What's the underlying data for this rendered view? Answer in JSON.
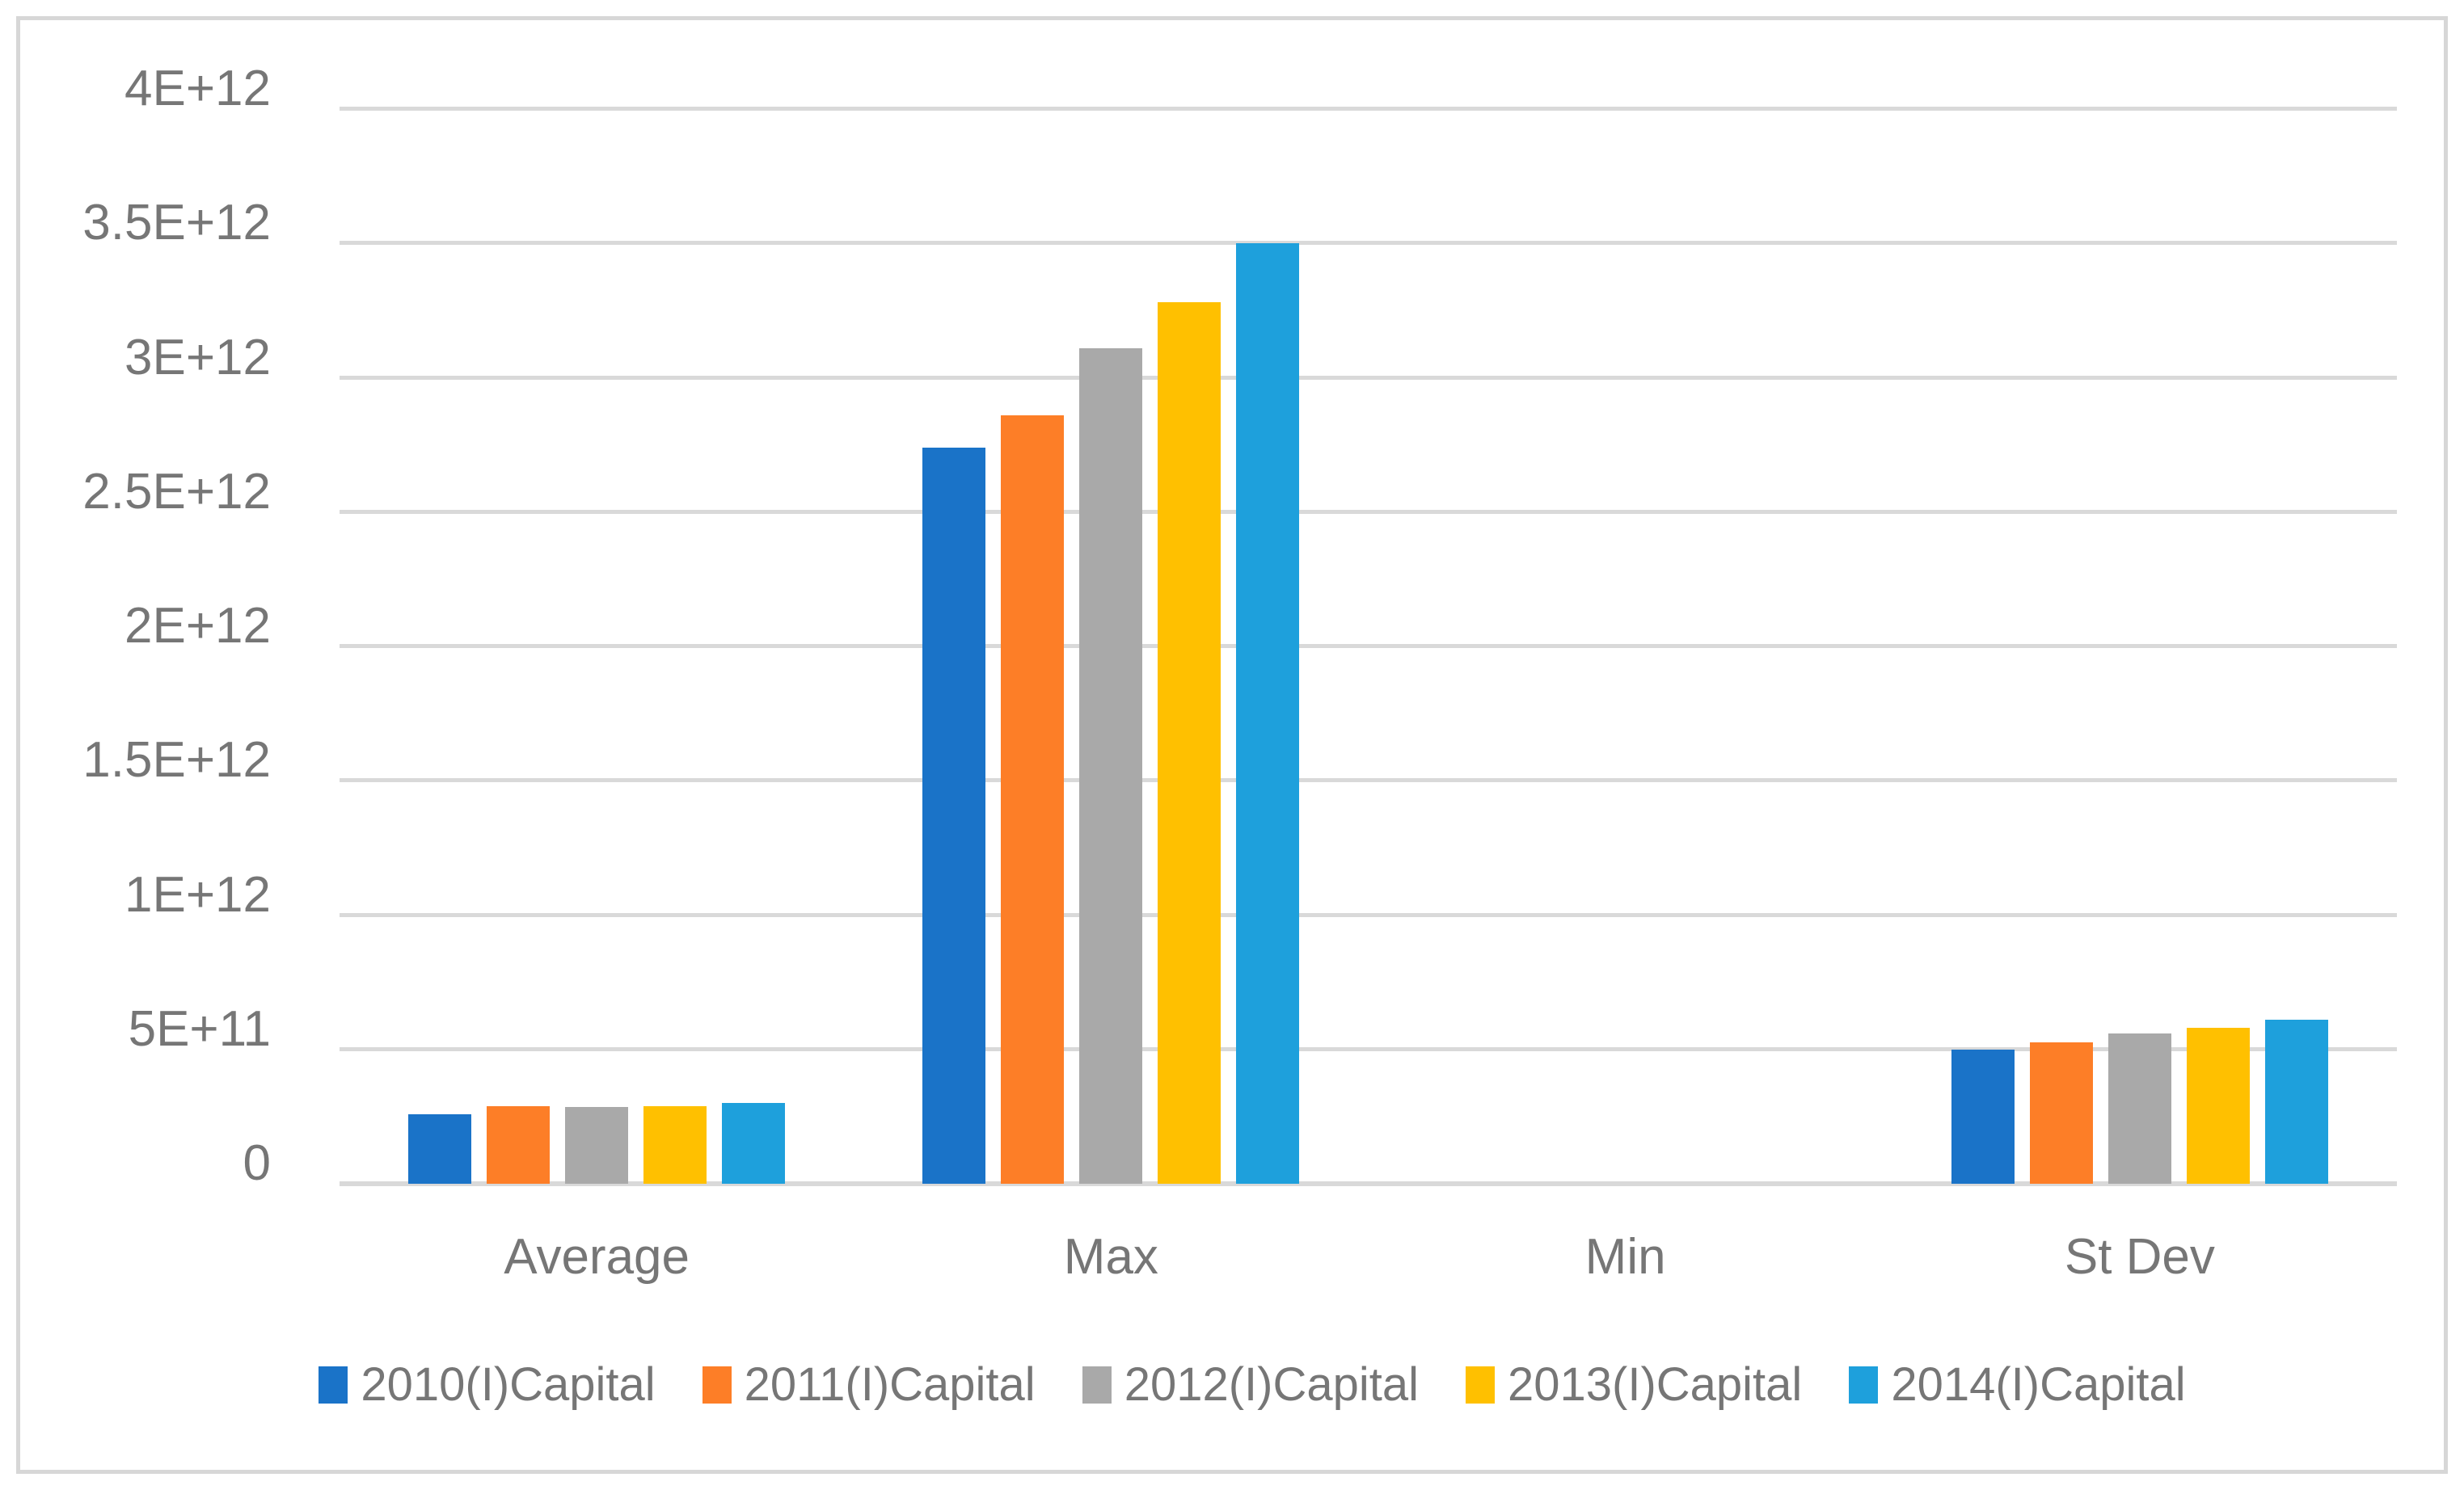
{
  "chart_data": {
    "type": "bar",
    "title": "",
    "xlabel": "",
    "ylabel": "",
    "categories": [
      "Average",
      "Max",
      "Min",
      "St Dev"
    ],
    "series": [
      {
        "name": "2010(I)Capital",
        "color": "#1a73c8",
        "values": [
          260000000000.0,
          2740000000000.0,
          0,
          500000000000.0
        ]
      },
      {
        "name": "2011(I)Capital",
        "color": "#fd7e27",
        "values": [
          290000000000.0,
          2860000000000.0,
          0,
          525000000000.0
        ]
      },
      {
        "name": "2012(I)Capital",
        "color": "#a9a9a9",
        "values": [
          285000000000.0,
          3110000000000.0,
          0,
          560000000000.0
        ]
      },
      {
        "name": "2013(I)Capital",
        "color": "#ffc000",
        "values": [
          290000000000.0,
          3280000000000.0,
          0,
          580000000000.0
        ]
      },
      {
        "name": "2014(I)Capital",
        "color": "#1ea0dc",
        "values": [
          300000000000.0,
          3500000000000.0,
          0,
          610000000000.0
        ]
      }
    ],
    "ylim": [
      0,
      4000000000000.0
    ],
    "ytick_interval": 500000000000.0,
    "ytick_labels_bottom_up": [
      "0",
      "5E+11",
      "1E+12",
      "1.5E+12",
      "2E+12",
      "2.5E+12",
      "3E+12",
      "3.5E+12",
      "4E+12"
    ],
    "grid": true,
    "gridline_color": "#d9d9d9",
    "axis_text_color": "#767676",
    "legend_position": "bottom",
    "plot_border_color": "#d7d7d7"
  }
}
